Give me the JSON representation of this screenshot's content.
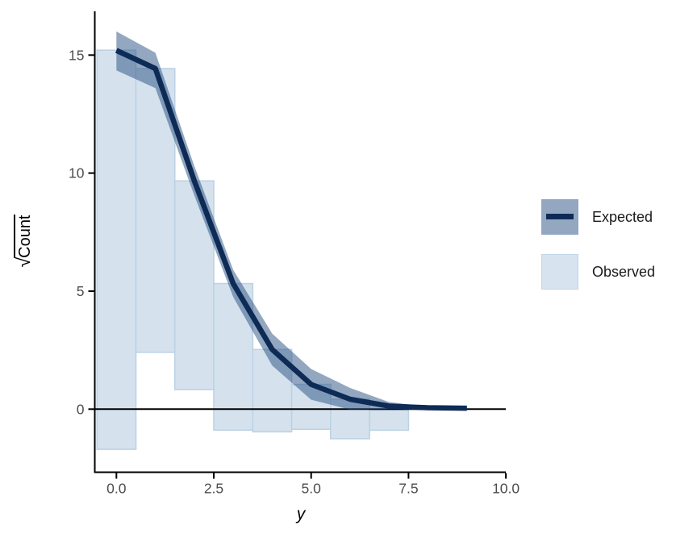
{
  "chart_data": {
    "type": "rootogram",
    "style": "hanging (bars hang from expected curve, sqrt scale)",
    "title": "",
    "xlabel": "y",
    "ylabel": "√Count",
    "ylabel_radical": "√",
    "ylabel_radicand": "Count",
    "x_ticks": [
      0.0,
      2.5,
      5.0,
      7.5,
      10.0
    ],
    "x_tick_labels": [
      "0.0",
      "2.5",
      "5.0",
      "7.5",
      "10.0"
    ],
    "y_ticks": [
      0,
      5,
      10,
      15
    ],
    "y_tick_labels": [
      "0",
      "5",
      "10",
      "15"
    ],
    "xlim": [
      -0.55,
      10.0
    ],
    "ylim": [
      -2.67,
      16.85
    ],
    "grid": false,
    "zero_line_y": 0,
    "legend_position": "right",
    "expected_line": {
      "x": [
        0,
        1,
        2,
        3,
        4,
        5,
        6,
        7,
        8,
        9
      ],
      "sqrt_count": [
        15.2,
        14.43,
        9.67,
        5.32,
        2.53,
        1.05,
        0.42,
        0.13,
        0.06,
        0.04
      ]
    },
    "ribbon": {
      "x": [
        0,
        1,
        2,
        3,
        4,
        5,
        6,
        7,
        8
      ],
      "lower": [
        14.35,
        13.6,
        9.05,
        4.75,
        1.85,
        0.4,
        -0.02,
        0.0,
        0.02
      ],
      "upper": [
        16.0,
        15.1,
        10.3,
        5.9,
        3.2,
        1.7,
        0.9,
        0.3,
        0.1
      ]
    },
    "bars": {
      "x": [
        0,
        1,
        2,
        3,
        4,
        5,
        6,
        7
      ],
      "width": 1,
      "top_sqrt": [
        15.21,
        14.43,
        9.67,
        5.32,
        2.53,
        1.05,
        0.42,
        -0.04
      ],
      "bottom_sqrt": [
        -1.7,
        2.41,
        0.83,
        -0.89,
        -0.96,
        -0.85,
        -1.25,
        -0.89
      ],
      "observed_count_est": [
        286,
        145,
        78,
        38,
        12,
        4,
        3,
        1
      ]
    },
    "legend": {
      "entries": [
        {
          "label": "Expected",
          "type": "ribbon-with-line"
        },
        {
          "label": "Observed",
          "type": "bar-swatch"
        }
      ]
    },
    "colors": {
      "expected_line": "#0e2b56",
      "ribbon_fill": "rgba(39,79,129,0.5)",
      "bar_fill": "#d5e2ee",
      "bar_border": "#bcd2e5",
      "axis_line": "#000000",
      "tick_label": "#4d4d4d",
      "axis_title": "#000000",
      "background": "#ffffff"
    }
  }
}
